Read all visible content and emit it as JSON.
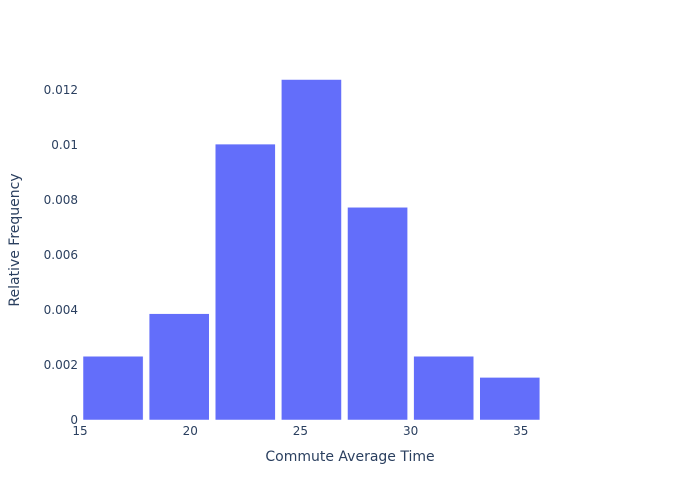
{
  "chart_data": {
    "type": "bar",
    "title": "",
    "xlabel": "Commute Average Time",
    "ylabel": "Relative Frequency",
    "bin_edges": [
      15,
      18,
      21,
      24,
      27,
      30,
      33,
      36,
      39
    ],
    "values": [
      0.00232,
      0.00387,
      0.01004,
      0.01239,
      0.00774,
      0.00232,
      0.00155,
      0
    ],
    "xlim": [
      15,
      39.5
    ],
    "ylim": [
      0,
      0.0131
    ],
    "x_ticks": [
      15,
      20,
      25,
      30,
      35
    ],
    "y_ticks": [
      0,
      0.002,
      0.004,
      0.006,
      0.008,
      0.01,
      0.012
    ],
    "y_tick_labels": [
      "0",
      "0.002",
      "0.004",
      "0.006",
      "0.008",
      "0.01",
      "0.012"
    ],
    "grid": false,
    "legend": "none",
    "bar_color": "#636efa"
  }
}
